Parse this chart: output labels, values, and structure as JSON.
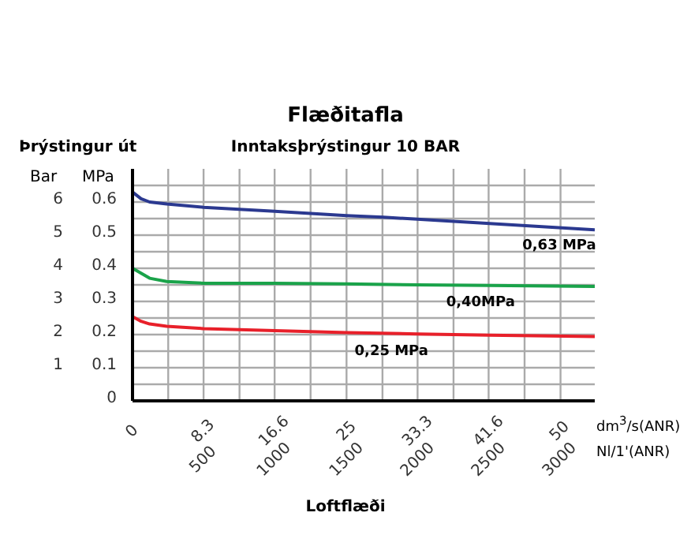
{
  "chart_data": {
    "type": "line",
    "title": "Flæðitafla",
    "subtitle": "Inntaksþrýstingur 10 BAR",
    "xlabel": "dm$^{3}$/s(ANR)",
    "x2label": "Nl/1'(ANR)",
    "ylabel": "MPa",
    "y2label": "Bar",
    "annotations": [
      "Þrýstingur út",
      "Loftflæði",
      {
        "text": "0,63 MPa",
        "x": 49.6,
        "y": 0.52
      },
      {
        "text": "0,40MPa",
        "x": 40.7,
        "y": 0.35
      },
      {
        "text": "0,25 MPa",
        "x": 30,
        "y": 0.2
      }
    ],
    "xlim": [
      0,
      54
    ],
    "xticks": [
      0,
      {
        "value": 4.17,
        "label": null
      },
      {
        "value": 8.3,
        "label": "8.3"
      },
      {
        "value": 12.5,
        "label": null
      },
      {
        "value": 16.6,
        "label": "16.6"
      },
      {
        "value": 20.8,
        "label": null
      },
      25,
      {
        "value": 29.2,
        "label": null
      },
      {
        "value": 33.3,
        "label": "33.3"
      },
      {
        "value": 37.5,
        "label": null
      },
      {
        "value": 41.6,
        "label": "41.6"
      },
      {
        "value": 45.8,
        "label": null
      },
      50
    ],
    "x2lim": [
      0,
      3240
    ],
    "x2ticks": [
      500,
      1000,
      1500,
      2000,
      2500,
      3000
    ],
    "ylim": [
      0,
      0.7
    ],
    "yticks": [
      0,
      {
        "value": 0.05,
        "label": null
      },
      0.1,
      {
        "value": 0.15,
        "label": null
      },
      0.2,
      {
        "value": 0.25,
        "label": null
      },
      0.3,
      {
        "value": 0.35,
        "label": null
      },
      0.4,
      {
        "value": 0.45,
        "label": null
      },
      0.5,
      {
        "value": 0.55,
        "label": null
      },
      0.6,
      {
        "value": 0.65,
        "label": null
      }
    ],
    "y2lim": [
      0,
      7
    ],
    "y2ticks": [
      1,
      2,
      3,
      4,
      5,
      6
    ],
    "grid": true,
    "marker": "none",
    "line_style": "solid",
    "series": [
      {
        "color": "#2b3990",
        "x": [
          0,
          1,
          2,
          4,
          8.3,
          16.6,
          25,
          29.3,
          39.8,
          54
        ],
        "values": [
          0.63,
          0.61,
          0.6,
          0.594,
          0.584,
          0.572,
          0.559,
          0.554,
          0.538,
          0.516
        ]
      },
      {
        "color": "#1aa34a",
        "x": [
          0,
          1,
          2,
          4,
          8.3,
          16.6,
          25,
          33.3,
          41.6,
          54
        ],
        "values": [
          0.4,
          0.385,
          0.37,
          0.36,
          0.355,
          0.355,
          0.353,
          0.35,
          0.348,
          0.345
        ]
      },
      {
        "color": "#e8202a",
        "x": [
          0,
          1,
          2,
          4,
          8.3,
          16.6,
          25,
          33.3,
          41.6,
          54
        ],
        "values": [
          0.254,
          0.24,
          0.232,
          0.225,
          0.218,
          0.212,
          0.206,
          0.202,
          0.198,
          0.194
        ]
      }
    ]
  }
}
